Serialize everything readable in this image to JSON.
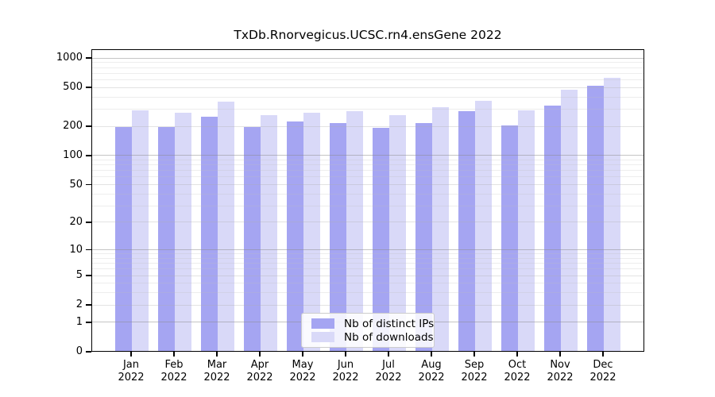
{
  "chart_data": {
    "type": "bar",
    "title": "TxDb.Rnorvegicus.UCSC.rn4.ensGene 2022",
    "year": "2022",
    "categories": [
      "Jan",
      "Feb",
      "Mar",
      "Apr",
      "May",
      "Jun",
      "Jul",
      "Aug",
      "Sep",
      "Oct",
      "Nov",
      "Dec"
    ],
    "series": [
      {
        "name": "Nb of distinct IPs",
        "color": "#a5a5f2",
        "values": [
          199,
          202,
          258,
          199,
          229,
          221,
          198,
          221,
          292,
          208,
          330,
          535
        ]
      },
      {
        "name": "Nb of downloads",
        "color": "#d9d9f8",
        "values": [
          297,
          280,
          363,
          265,
          280,
          294,
          268,
          323,
          374,
          297,
          488,
          644
        ]
      }
    ],
    "y_axis": {
      "scale": "log1p",
      "ticks": [
        0,
        1,
        2,
        5,
        10,
        20,
        50,
        100,
        200,
        500,
        1000
      ],
      "range": [
        0,
        1000
      ]
    },
    "x_axis": {
      "tick_label_format": "Month newline Year"
    },
    "legend": {
      "position": "bottom-center",
      "entries": [
        "Nb of distinct IPs",
        "Nb of downloads"
      ]
    },
    "grid": {
      "horizontal": true,
      "minor_log_lines": true
    },
    "colors": {
      "background": "#ffffff",
      "axis": "#000000",
      "major_grid": "#c8c8c8",
      "minor_grid": "#ededed"
    }
  }
}
